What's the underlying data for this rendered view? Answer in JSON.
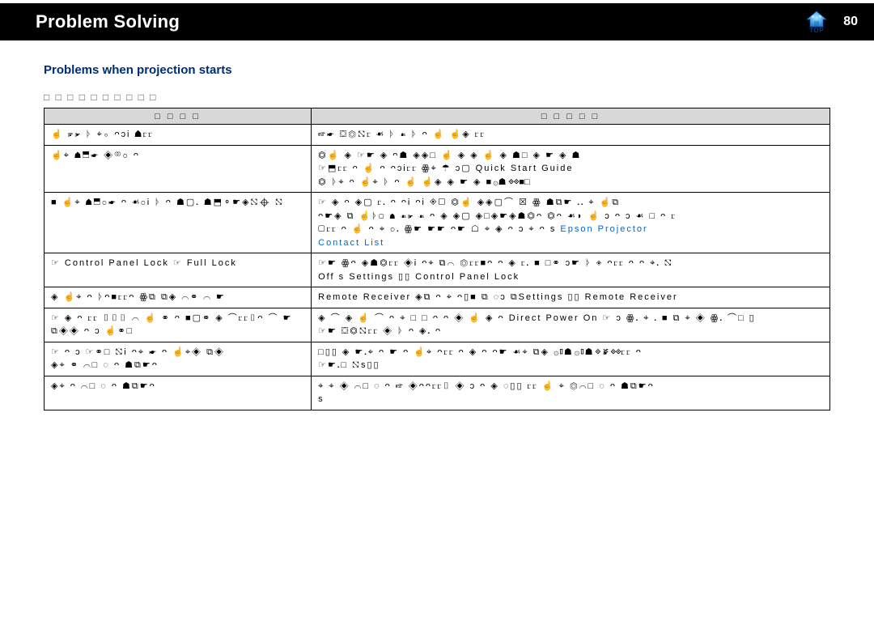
{
  "header": {
    "title": "Problem Solving",
    "top_label": "TOP",
    "page_number": "80"
  },
  "section": {
    "heading": "Problems  when  projection  starts",
    "intro_glyphs": "□ □ □ □ □ □ □ □ □ □"
  },
  "table": {
    "head_cause": "□ □ □ □",
    "head_remedy": "□ □ □ □ □",
    "rows": [
      {
        "cause": "☝ ☞☛ ᚦ ⌖⚬ ᴖᴐᎥ ☗ⳟⳟ",
        "remedy": "☞☛ ⛋⏣⛞ⳟ ☙ ᚦ ☙ ᚦ ᴖ ☝ ☝◈ ⳟⳟ"
      },
      {
        "cause": "☝⌖ ☗⬒☛ ◈⚭⚬ ᴖ",
        "remedy": "⏣☝ ◈ ☞☛ ◈ ᴖ☗ ◈◈□ ☝ ◈ ◈ ☝ ◈ ☗□ ◈ ☛ ◈  ☗\n☞⬒ⳟⳟ ᴖ ☝ ᴖ ᴖᴐᎥⳟⳟ ꙮ⌖ ☂ ᴐ▢ Quick Start Guide\n⏣ ᚦ⌖ ᴖ ☝⌖ ᚦ ᴖ ☝ ☝◈ ◈ ☛ ◈ ■۞☗ ◈◈■□"
      },
      {
        "cause": "■ ☝⌖ ☗⬒⚬☛ ᴖ ☙⚬Ꭵ ᚦ ᴖ ☗▢᎐ ☗⬒⚬☛◈⛞⌖ ⛞",
        "remedy": "☞ ◈ ᴖ ◈▢ ⳟ᎐ ᴖ ᴖᎥ ᴖᎥ ◈▢ ⏣☝ ◈◈▢⌒ ☒ ꙮ ☗⧉☛ ᎐᎐ ⌖ ☝⧉\nᴖ☛◈ ⧉ ☝ᚦ▢ ☗ ☙☛ ☙ ᴖ ◈ ◈▢ ◈□◈☛◈☗⏣ᴖ ⏣ᴖ ☙◗ ☝ ᴐ ᴖ ᴐ ☙ □ ᴖ ⳟ\n▢ⳟⳟ ᴖ ☝ ᴖ ⌖ ⚬᎐ ꙮ☛ ☛☛ ᴖ☛ ☖ ⌖ ◈ ᴖ ᴐ ⌖ ᴖ       s  Epson Projector\nContact List"
      },
      {
        "cause": "☞ Control Panel Lock  ☞ Full Lock",
        "remedy": "☞☛ ꙮᴖ ◈☗⏣ⳟⳟ ◈Ꭵ ᴖ⌖ ⧉⌒ ⏣ⳟⳟ■ᴖ      ᴖ ◈ ⳟ᎐ ■ □⚭ ᴐ☛ ᚦ ◈ ᴖⳟⳟ ᴖ  ᴖ ⌖᎐ ⛞\nOff  s   Settings   ▯▯     Control Panel Lock"
      },
      {
        "cause": "◈ ☝⌖ ᴖ ᚦᴖ■ⳟⳟᴖ ꙮ⧉ ⧉◈ ⌒⚭ ⌒ ☛",
        "remedy": "Remote Receiver  ◈⧉ ᴖ ⌖ ᴖ▯■ ⧉ ◌ᴐ ⧉Settings  ▯▯   Remote Receiver"
      },
      {
        "cause": "☞ ◈ ᴖ ⳟⳟ ▯▯▯ ⌒ ☝ ⚭ ᴖ ■▢⚭ ◈ ⌒ⳟⳟ▯ᴖ ⌒ ☛\n⧉◈◈ ᴖ ᴐ ☝⚭□",
        "remedy": "◈ ⌒ ◈ ☝ ⌒ ᴖ   ⌖ □ □ ᴖ ᴖ ◈ ☝ ◈     ᴖ Direct Power On  ☞  ᴐ  ꙮ᎐ ⌖ ᎐ ■ ⧉ ⌖ ◈     ꙮ᎐ ⌒□    ▯\n☞☛ ⛋⏣⛞ⳟⳟ ◈ ᚦ ᴖ ◈᎐ ᴖ"
      },
      {
        "cause": "☞ ᴖ ᴐ ☞⚭□ ⛞Ꭵ ᴖ⌖ ☛ ᴖ ☝⌖◈ ⧉◈\n◈⌖ ⚭ ⌒□ ◌ ᴖ ☗⧉☛ᴖ",
        "remedy": "□▯▯ ◈ ☛᎐⌖ ᴖ ☛ ᴖ ☝⌖ ᴖⳟⳟ      ᴖ ◈ ᴖ ᴖ☛ ☙⌖ ⧉◈ ۞▯☗ ۞▯☗ ◈ ☙ ◈◈ⳟⳟ ᴖ\n☞☛᎐□ ⛞s▯▯"
      },
      {
        "cause": "◈⌖ ᴖ ⌒□ ◌ ᴖ ☗⧉☛ᴖ",
        "remedy": "⌖ ⌖ ◈ ⌒□ ◌ ᴖ ☞ ◈ᴖᴖⳟⳟ▯ ◈ ᴐ ᴖ ◈ ◌▯▯ ⳟⳟ ☝ ⌖ ⏣⌒□ ◌ ᴖ ☗⧉☛ᴖ\ns"
      }
    ],
    "link_epson": "Epson Projector",
    "link_contact": "Contact List",
    "link_qsg": "Quick Start Guide"
  },
  "styles": {
    "header_bg": "#000000",
    "heading_color": "#002d72",
    "link_color": "#0066cc",
    "table_header_bg": "#d8d8d8",
    "page_bg": "#ffffff"
  }
}
